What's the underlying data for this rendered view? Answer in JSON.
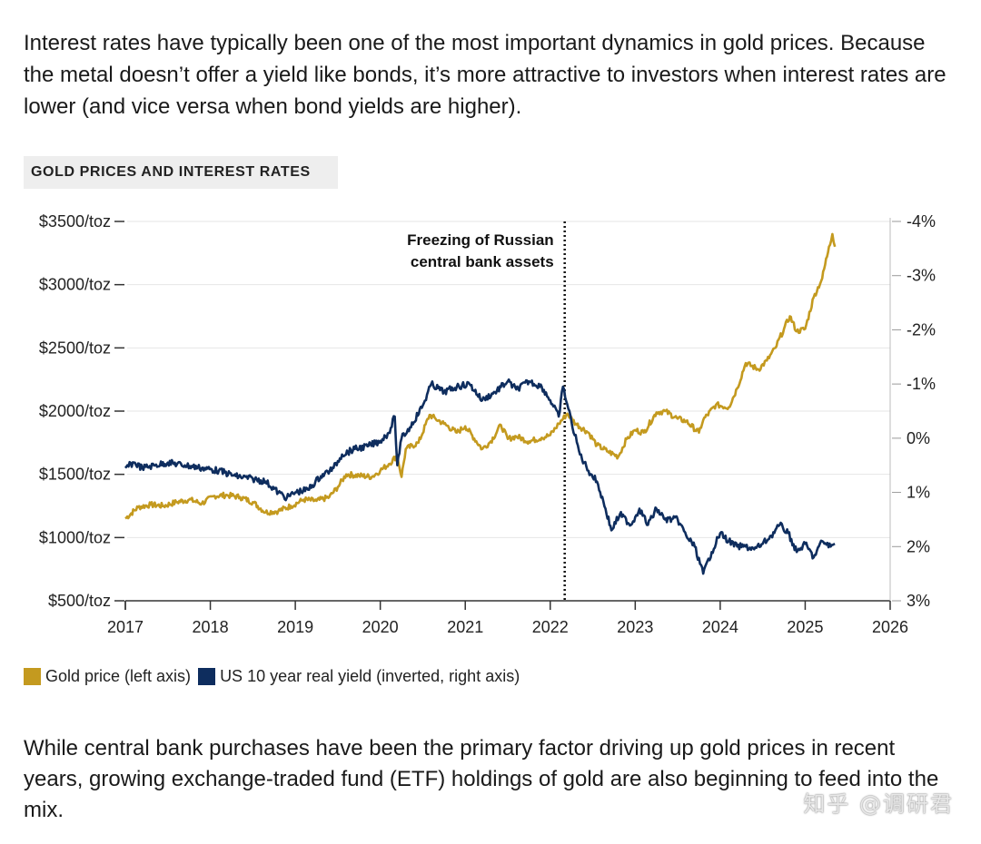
{
  "intro_text": "Interest rates have typically been one of the most important dynamics in gold prices. Because the metal doesn’t offer a yield like bonds, it’s more attractive to investors when interest rates are lower (and vice versa when bond yields are higher).",
  "outro_text": "While central bank purchases have been the primary factor driving up gold prices in recent years, growing exchange-traded fund (ETF) holdings of gold are also beginning to feed into the mix.",
  "watermark": "知乎 @调研君",
  "colors": {
    "gold": "#C49A1F",
    "yield": "#0E2D5E",
    "axis": "#333333",
    "grid": "#e6e6e6"
  },
  "chart_data": {
    "type": "line",
    "title": "GOLD PRICES AND INTEREST RATES",
    "x_ticks": [
      "2017",
      "2018",
      "2019",
      "2020",
      "2021",
      "2022",
      "2023",
      "2024",
      "2025",
      "2026"
    ],
    "xlim": [
      2017,
      2026
    ],
    "left_axis": {
      "ticks": [
        "$500/toz",
        "$1000/toz",
        "$1500/toz",
        "$2000/toz",
        "$2500/toz",
        "$3000/toz",
        "$3500/toz"
      ],
      "range": [
        500,
        3500
      ]
    },
    "right_axis": {
      "ticks": [
        "-4%",
        "-3%",
        "-2%",
        "-1%",
        "0%",
        "1%",
        "2%",
        "3%"
      ],
      "range": [
        -4,
        3
      ],
      "inverted": true
    },
    "annotation": {
      "x": 2022.17,
      "text_line1": "Freezing of Russian",
      "text_line2": "central bank assets"
    },
    "series": [
      {
        "name": "Gold price (left axis)",
        "axis": "left",
        "points": [
          [
            2017.0,
            1150
          ],
          [
            2017.15,
            1240
          ],
          [
            2017.3,
            1260
          ],
          [
            2017.45,
            1250
          ],
          [
            2017.6,
            1280
          ],
          [
            2017.75,
            1300
          ],
          [
            2017.9,
            1270
          ],
          [
            2018.05,
            1330
          ],
          [
            2018.2,
            1335
          ],
          [
            2018.35,
            1320
          ],
          [
            2018.5,
            1280
          ],
          [
            2018.65,
            1200
          ],
          [
            2018.8,
            1210
          ],
          [
            2018.95,
            1250
          ],
          [
            2019.1,
            1300
          ],
          [
            2019.25,
            1290
          ],
          [
            2019.4,
            1320
          ],
          [
            2019.5,
            1400
          ],
          [
            2019.6,
            1500
          ],
          [
            2019.75,
            1490
          ],
          [
            2019.9,
            1480
          ],
          [
            2020.0,
            1530
          ],
          [
            2020.1,
            1580
          ],
          [
            2020.2,
            1650
          ],
          [
            2020.25,
            1480
          ],
          [
            2020.3,
            1700
          ],
          [
            2020.45,
            1750
          ],
          [
            2020.58,
            1970
          ],
          [
            2020.65,
            1940
          ],
          [
            2020.75,
            1900
          ],
          [
            2020.9,
            1830
          ],
          [
            2021.0,
            1880
          ],
          [
            2021.2,
            1700
          ],
          [
            2021.3,
            1760
          ],
          [
            2021.42,
            1890
          ],
          [
            2021.5,
            1780
          ],
          [
            2021.6,
            1800
          ],
          [
            2021.75,
            1760
          ],
          [
            2021.9,
            1790
          ],
          [
            2022.0,
            1810
          ],
          [
            2022.1,
            1900
          ],
          [
            2022.2,
            1980
          ],
          [
            2022.3,
            1900
          ],
          [
            2022.45,
            1830
          ],
          [
            2022.55,
            1730
          ],
          [
            2022.68,
            1680
          ],
          [
            2022.8,
            1640
          ],
          [
            2022.9,
            1780
          ],
          [
            2023.0,
            1850
          ],
          [
            2023.1,
            1830
          ],
          [
            2023.25,
            1990
          ],
          [
            2023.35,
            2000
          ],
          [
            2023.5,
            1940
          ],
          [
            2023.6,
            1920
          ],
          [
            2023.75,
            1830
          ],
          [
            2023.8,
            1930
          ],
          [
            2023.95,
            2050
          ],
          [
            2024.1,
            2030
          ],
          [
            2024.2,
            2180
          ],
          [
            2024.3,
            2380
          ],
          [
            2024.45,
            2330
          ],
          [
            2024.55,
            2400
          ],
          [
            2024.65,
            2500
          ],
          [
            2024.75,
            2650
          ],
          [
            2024.82,
            2750
          ],
          [
            2024.9,
            2630
          ],
          [
            2025.0,
            2650
          ],
          [
            2025.1,
            2900
          ],
          [
            2025.2,
            3050
          ],
          [
            2025.28,
            3300
          ],
          [
            2025.32,
            3400
          ],
          [
            2025.35,
            3300
          ]
        ]
      },
      {
        "name": "US 10 year real yield (inverted, right axis)",
        "axis": "right",
        "points": [
          [
            2017.0,
            0.55
          ],
          [
            2017.1,
            0.45
          ],
          [
            2017.2,
            0.55
          ],
          [
            2017.35,
            0.5
          ],
          [
            2017.5,
            0.45
          ],
          [
            2017.7,
            0.5
          ],
          [
            2017.9,
            0.55
          ],
          [
            2018.1,
            0.6
          ],
          [
            2018.3,
            0.7
          ],
          [
            2018.5,
            0.75
          ],
          [
            2018.65,
            0.8
          ],
          [
            2018.8,
            1.0
          ],
          [
            2018.9,
            1.1
          ],
          [
            2019.0,
            1.0
          ],
          [
            2019.15,
            0.95
          ],
          [
            2019.3,
            0.7
          ],
          [
            2019.45,
            0.55
          ],
          [
            2019.55,
            0.3
          ],
          [
            2019.7,
            0.2
          ],
          [
            2019.85,
            0.15
          ],
          [
            2020.0,
            0.05
          ],
          [
            2020.1,
            -0.1
          ],
          [
            2020.17,
            -0.4
          ],
          [
            2020.2,
            0.5
          ],
          [
            2020.25,
            0.0
          ],
          [
            2020.35,
            -0.2
          ],
          [
            2020.5,
            -0.6
          ],
          [
            2020.6,
            -1.0
          ],
          [
            2020.75,
            -0.85
          ],
          [
            2020.9,
            -0.95
          ],
          [
            2021.05,
            -1.0
          ],
          [
            2021.2,
            -0.7
          ],
          [
            2021.35,
            -0.85
          ],
          [
            2021.5,
            -1.05
          ],
          [
            2021.6,
            -0.9
          ],
          [
            2021.75,
            -1.05
          ],
          [
            2021.9,
            -0.95
          ],
          [
            2022.0,
            -0.7
          ],
          [
            2022.1,
            -0.4
          ],
          [
            2022.15,
            -0.95
          ],
          [
            2022.25,
            -0.3
          ],
          [
            2022.35,
            0.3
          ],
          [
            2022.45,
            0.6
          ],
          [
            2022.55,
            0.8
          ],
          [
            2022.65,
            1.3
          ],
          [
            2022.72,
            1.7
          ],
          [
            2022.82,
            1.4
          ],
          [
            2022.95,
            1.6
          ],
          [
            2023.05,
            1.3
          ],
          [
            2023.15,
            1.6
          ],
          [
            2023.25,
            1.3
          ],
          [
            2023.35,
            1.5
          ],
          [
            2023.5,
            1.5
          ],
          [
            2023.6,
            1.8
          ],
          [
            2023.7,
            2.0
          ],
          [
            2023.8,
            2.5
          ],
          [
            2023.9,
            2.1
          ],
          [
            2024.0,
            1.75
          ],
          [
            2024.1,
            1.9
          ],
          [
            2024.2,
            2.0
          ],
          [
            2024.3,
            2.0
          ],
          [
            2024.4,
            2.05
          ],
          [
            2024.5,
            1.95
          ],
          [
            2024.6,
            1.8
          ],
          [
            2024.7,
            1.6
          ],
          [
            2024.8,
            1.75
          ],
          [
            2024.9,
            2.1
          ],
          [
            2025.0,
            1.95
          ],
          [
            2025.1,
            2.2
          ],
          [
            2025.2,
            1.9
          ],
          [
            2025.3,
            2.0
          ],
          [
            2025.35,
            1.95
          ]
        ]
      }
    ]
  }
}
